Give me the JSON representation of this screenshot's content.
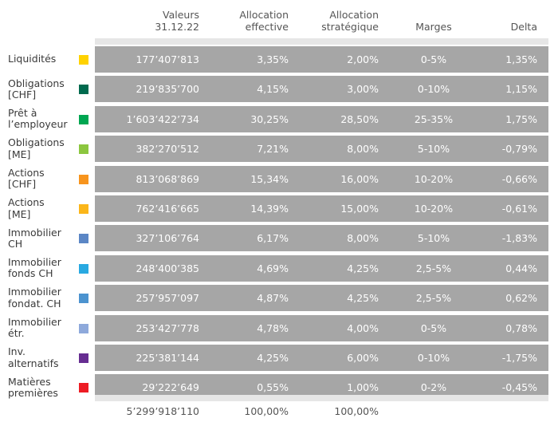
{
  "header": {
    "valeurs": [
      "Valeurs",
      "31.12.22"
    ],
    "alloc_eff": [
      "Allocation",
      "effective"
    ],
    "alloc_strat": [
      "Allocation",
      "stratégique"
    ],
    "marges": "Marges",
    "delta": "Delta"
  },
  "rows": [
    {
      "label": [
        "Liquidités"
      ],
      "color": "#ffd200",
      "valeur": "177’407’813",
      "eff": "3,35%",
      "strat": "2,00%",
      "marges": "0-5%",
      "delta": "1,35%"
    },
    {
      "label": [
        "Obligations",
        "[CHF]"
      ],
      "color": "#006a4e",
      "valeur": "219’835’700",
      "eff": "4,15%",
      "strat": "3,00%",
      "marges": "0-10%",
      "delta": "1,15%"
    },
    {
      "label": [
        "Prêt à",
        "l’employeur"
      ],
      "color": "#00a651",
      "valeur": "1’603’422’734",
      "eff": "30,25%",
      "strat": "28,50%",
      "marges": "25-35%",
      "delta": "1,75%"
    },
    {
      "label": [
        "Obligations",
        "[ME]"
      ],
      "color": "#8cc63f",
      "valeur": "382’270’512",
      "eff": "7,21%",
      "strat": "8,00%",
      "marges": "5-10%",
      "delta": "-0,79%"
    },
    {
      "label": [
        "Actions",
        "[CHF]"
      ],
      "color": "#f7941d",
      "valeur": "813’068’869",
      "eff": "15,34%",
      "strat": "16,00%",
      "marges": "10-20%",
      "delta": "-0,66%"
    },
    {
      "label": [
        "Actions",
        "[ME]"
      ],
      "color": "#fbb61a",
      "valeur": "762’416’665",
      "eff": "14,39%",
      "strat": "15,00%",
      "marges": "10-20%",
      "delta": "-0,61%"
    },
    {
      "label": [
        "Immobilier",
        "CH"
      ],
      "color": "#5b86c5",
      "valeur": "327’106’764",
      "eff": "6,17%",
      "strat": "8,00%",
      "marges": "5-10%",
      "delta": "-1,83%"
    },
    {
      "label": [
        "Immobilier",
        "fonds CH"
      ],
      "color": "#29a9e1",
      "valeur": "248’400’385",
      "eff": "4,69%",
      "strat": "4,25%",
      "marges": "2,5-5%",
      "delta": "0,44%"
    },
    {
      "label": [
        "Immobilier",
        "fondat. CH"
      ],
      "color": "#4c93cf",
      "valeur": "257’957’097",
      "eff": "4,87%",
      "strat": "4,25%",
      "marges": "2,5-5%",
      "delta": "0,62%"
    },
    {
      "label": [
        "Immobilier",
        "étr."
      ],
      "color": "#8ea9db",
      "valeur": "253’427’778",
      "eff": "4,78%",
      "strat": "4,00%",
      "marges": "0-5%",
      "delta": "0,78%"
    },
    {
      "label": [
        "Inv.",
        "alternatifs"
      ],
      "color": "#662d91",
      "valeur": "225’381’144",
      "eff": "4,25%",
      "strat": "6,00%",
      "marges": "0-10%",
      "delta": "-1,75%"
    },
    {
      "label": [
        "Matières",
        "premières"
      ],
      "color": "#ed1c24",
      "valeur": "29’222’649",
      "eff": "0,55%",
      "strat": "1,00%",
      "marges": "0-2%",
      "delta": "-0,45%"
    }
  ],
  "totals": {
    "valeur": "5’299’918’110",
    "eff": "100,00%",
    "strat": "100,00%"
  }
}
